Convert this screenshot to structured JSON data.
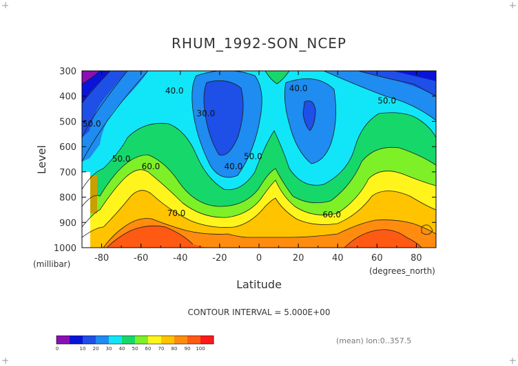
{
  "chart_data": {
    "type": "heatmap",
    "subtype": "filled-contour",
    "title": "RHUM_1992-SON_NCEP",
    "xlabel": "Latitude",
    "ylabel": "Level",
    "x_unit": "(degrees_north)",
    "y_unit": "(millibar)",
    "xlim": [
      -90,
      90
    ],
    "ylim": [
      1000,
      300
    ],
    "x_ticks": [
      -80,
      -60,
      -40,
      -20,
      0,
      20,
      40,
      60,
      80
    ],
    "y_ticks": [
      300,
      400,
      500,
      600,
      700,
      800,
      900,
      1000
    ],
    "contour_interval_text": "CONTOUR INTERVAL = 5.000E+00",
    "footer_text": "(mean) lon:0..357.5",
    "contour_labels": [
      {
        "text": "40.0",
        "lat": -43,
        "level": 390
      },
      {
        "text": "50.0",
        "lat": -85,
        "level": 520
      },
      {
        "text": "50.0",
        "lat": -70,
        "level": 660
      },
      {
        "text": "60.0",
        "lat": -55,
        "level": 690
      },
      {
        "text": "70.0",
        "lat": -42,
        "level": 875
      },
      {
        "text": "30.0",
        "lat": -27,
        "level": 480
      },
      {
        "text": "40.0",
        "lat": -13,
        "level": 690
      },
      {
        "text": "50.0",
        "lat": -3,
        "level": 650
      },
      {
        "text": "40.0",
        "lat": 20,
        "level": 380
      },
      {
        "text": "50.0",
        "lat": 65,
        "level": 430
      },
      {
        "text": "60.0",
        "lat": 37,
        "level": 880
      }
    ],
    "colorbar": {
      "ticks": [
        "0",
        "10",
        "20",
        "30",
        "40",
        "50",
        "60",
        "70",
        "80",
        "90",
        "100"
      ],
      "colors": [
        "#8a0fb5",
        "#0a14d8",
        "#1e4fe6",
        "#1e8cf0",
        "#11e6f8",
        "#16d86a",
        "#7df028",
        "#fff51c",
        "#ffc300",
        "#ff8c0f",
        "#ff5a14",
        "#ff1a1a"
      ]
    }
  }
}
